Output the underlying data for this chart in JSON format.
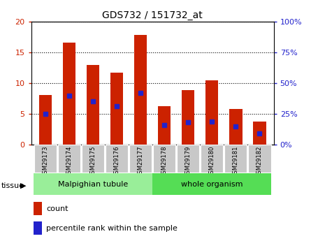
{
  "title": "GDS732 / 151732_at",
  "samples": [
    "GSM29173",
    "GSM29174",
    "GSM29175",
    "GSM29176",
    "GSM29177",
    "GSM29178",
    "GSM29179",
    "GSM29180",
    "GSM29181",
    "GSM29182"
  ],
  "counts": [
    8.05,
    16.55,
    13.0,
    11.7,
    17.8,
    6.3,
    8.9,
    10.5,
    5.85,
    3.7
  ],
  "percentiles": [
    25,
    40,
    35,
    31,
    42,
    16,
    18,
    19,
    15,
    9
  ],
  "ylim_left": [
    0,
    20
  ],
  "ylim_right": [
    0,
    100
  ],
  "yticks_left": [
    0,
    5,
    10,
    15,
    20
  ],
  "yticks_right": [
    0,
    25,
    50,
    75,
    100
  ],
  "bar_color": "#cc2200",
  "blue_color": "#2222cc",
  "tissue_groups": [
    {
      "label": "Malpighian tubule",
      "start": 0,
      "end": 5,
      "color": "#99ee99"
    },
    {
      "label": "whole organism",
      "start": 5,
      "end": 10,
      "color": "#55dd55"
    }
  ],
  "legend_count": "count",
  "legend_percentile": "percentile rank within the sample",
  "bar_width": 0.55,
  "grid_color": "#000000",
  "tick_color_left": "#cc2200",
  "tick_color_right": "#2222cc",
  "bg_color": "#ffffff",
  "xticklabel_bg": "#c8c8c8",
  "title_fontsize": 10
}
